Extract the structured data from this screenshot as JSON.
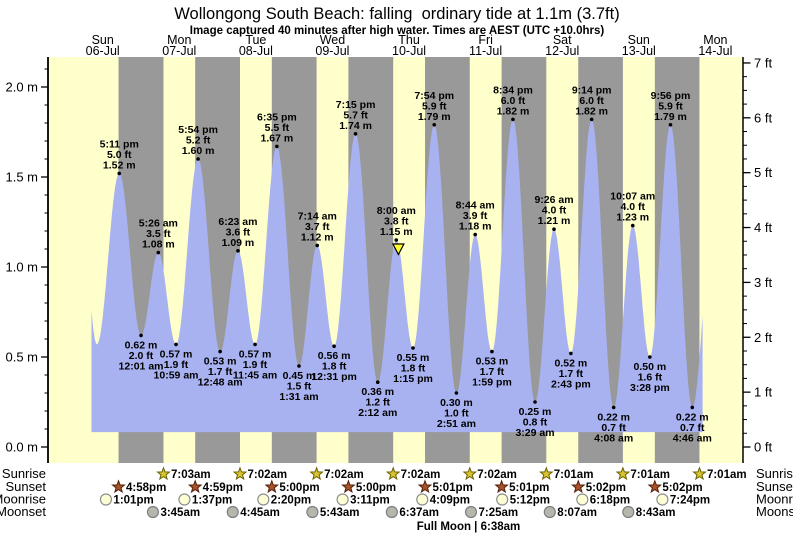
{
  "chart_data": {
    "type": "area",
    "title": "Wollongong South Beach: falling  ordinary tide at 1.1m (3.7ft)",
    "subtitle": "Image captured 40 minutes after high water. Times are AEST (UTC +10.0hrs)",
    "days": [
      {
        "name": "Sun",
        "date": "06-Jul"
      },
      {
        "name": "Mon",
        "date": "07-Jul"
      },
      {
        "name": "Tue",
        "date": "08-Jul"
      },
      {
        "name": "Wed",
        "date": "09-Jul"
      },
      {
        "name": "Thu",
        "date": "10-Jul"
      },
      {
        "name": "Fri",
        "date": "11-Jul"
      },
      {
        "name": "Sat",
        "date": "12-Jul"
      },
      {
        "name": "Sun",
        "date": "13-Jul"
      },
      {
        "name": "Mon",
        "date": "14-Jul"
      }
    ],
    "y_axis_left": {
      "unit": "m",
      "min": 0.0,
      "max": 2.0,
      "major_step": 0.5,
      "minor_step": 0.1,
      "major_tick_labels": [
        "0.0 m",
        "0.5 m",
        "1.0 m",
        "1.5 m",
        "2.0 m"
      ]
    },
    "y_axis_right": {
      "unit": "ft",
      "min": 0,
      "max": 7,
      "major_step": 1,
      "minor_step": 0.25,
      "major_tick_labels": [
        "0 ft",
        "1 ft",
        "2 ft",
        "3 ft",
        "4 ft",
        "5 ft",
        "6 ft",
        "7 ft"
      ]
    },
    "grid": "alternating day/night vertical bands",
    "legend_position": "none",
    "tide_events": [
      {
        "kind": "high",
        "day": 0,
        "time": "5:11 pm",
        "ft": "5.0 ft",
        "m": "1.52 m"
      },
      {
        "kind": "low",
        "day": 1,
        "time": "12:01 am",
        "ft": "2.0 ft",
        "m": "0.62 m"
      },
      {
        "kind": "high",
        "day": 1,
        "time": "5:26 am",
        "ft": "3.5 ft",
        "m": "1.08 m"
      },
      {
        "kind": "low",
        "day": 1,
        "time": "10:59 am",
        "ft": "1.9 ft",
        "m": "0.57 m"
      },
      {
        "kind": "high",
        "day": 1,
        "time": "5:54 pm",
        "ft": "5.2 ft",
        "m": "1.60 m"
      },
      {
        "kind": "low",
        "day": 2,
        "time": "12:48 am",
        "ft": "1.7 ft",
        "m": "0.53 m"
      },
      {
        "kind": "high",
        "day": 2,
        "time": "6:23 am",
        "ft": "3.6 ft",
        "m": "1.09 m"
      },
      {
        "kind": "low",
        "day": 2,
        "time": "11:45 am",
        "ft": "1.9 ft",
        "m": "0.57 m"
      },
      {
        "kind": "high",
        "day": 2,
        "time": "6:35 pm",
        "ft": "5.5 ft",
        "m": "1.67 m"
      },
      {
        "kind": "low",
        "day": 3,
        "time": "1:31 am",
        "ft": "1.5 ft",
        "m": "0.45 m"
      },
      {
        "kind": "high",
        "day": 3,
        "time": "7:14 am",
        "ft": "3.7 ft",
        "m": "1.12 m"
      },
      {
        "kind": "low",
        "day": 3,
        "time": "12:31 pm",
        "ft": "1.8 ft",
        "m": "0.56 m"
      },
      {
        "kind": "high",
        "day": 3,
        "time": "7:15 pm",
        "ft": "5.7 ft",
        "m": "1.74 m"
      },
      {
        "kind": "low",
        "day": 4,
        "time": "2:12 am",
        "ft": "1.2 ft",
        "m": "0.36 m"
      },
      {
        "kind": "high",
        "day": 4,
        "time": "8:00 am",
        "ft": "3.8 ft",
        "m": "1.15 m"
      },
      {
        "kind": "low",
        "day": 4,
        "time": "1:15 pm",
        "ft": "1.8 ft",
        "m": "0.55 m"
      },
      {
        "kind": "high",
        "day": 4,
        "time": "7:54 pm",
        "ft": "5.9 ft",
        "m": "1.79 m"
      },
      {
        "kind": "low",
        "day": 5,
        "time": "2:51 am",
        "ft": "1.0 ft",
        "m": "0.30 m"
      },
      {
        "kind": "high",
        "day": 5,
        "time": "8:44 am",
        "ft": "3.9 ft",
        "m": "1.18 m"
      },
      {
        "kind": "low",
        "day": 5,
        "time": "1:59 pm",
        "ft": "1.7 ft",
        "m": "0.53 m"
      },
      {
        "kind": "high",
        "day": 5,
        "time": "8:34 pm",
        "ft": "6.0 ft",
        "m": "1.82 m"
      },
      {
        "kind": "low",
        "day": 6,
        "time": "3:29 am",
        "ft": "0.8 ft",
        "m": "0.25 m"
      },
      {
        "kind": "high",
        "day": 6,
        "time": "9:26 am",
        "ft": "4.0 ft",
        "m": "1.21 m"
      },
      {
        "kind": "low",
        "day": 6,
        "time": "2:43 pm",
        "ft": "1.7 ft",
        "m": "0.52 m"
      },
      {
        "kind": "high",
        "day": 6,
        "time": "9:14 pm",
        "ft": "6.0 ft",
        "m": "1.82 m"
      },
      {
        "kind": "low",
        "day": 7,
        "time": "4:08 am",
        "ft": "0.7 ft",
        "m": "0.22 m"
      },
      {
        "kind": "high",
        "day": 7,
        "time": "10:07 am",
        "ft": "4.0 ft",
        "m": "1.23 m"
      },
      {
        "kind": "low",
        "day": 7,
        "time": "3:28 pm",
        "ft": "1.6 ft",
        "m": "0.50 m"
      },
      {
        "kind": "high",
        "day": 7,
        "time": "9:56 pm",
        "ft": "5.9 ft",
        "m": "1.79 m"
      },
      {
        "kind": "low",
        "day": 8,
        "time": "4:46 am",
        "ft": "0.7 ft",
        "m": "0.22 m"
      }
    ],
    "current_marker": {
      "day": 4,
      "time": "8:40 am",
      "height_m": 1.1
    },
    "curve_boundaries": {
      "start": {
        "day": 0,
        "time": "8:30 am",
        "height_m": 0.75
      },
      "unlabeled_low": {
        "day": 0,
        "time": "10:10 am",
        "height_m": 0.57
      },
      "end": {
        "day": 8,
        "time": "8:00 am",
        "height_m": 0.73
      }
    },
    "astro_rows": {
      "row_labels": [
        "Sunrise",
        "Sunset",
        "Moonrise",
        "Moonset"
      ],
      "sunrise": [
        {
          "day": 1,
          "time": "7:03am"
        },
        {
          "day": 2,
          "time": "7:02am"
        },
        {
          "day": 3,
          "time": "7:02am"
        },
        {
          "day": 4,
          "time": "7:02am"
        },
        {
          "day": 5,
          "time": "7:02am"
        },
        {
          "day": 6,
          "time": "7:01am"
        },
        {
          "day": 7,
          "time": "7:01am"
        },
        {
          "day": 8,
          "time": "7:01am"
        }
      ],
      "sunset": [
        {
          "day": 0,
          "time": "4:58pm"
        },
        {
          "day": 1,
          "time": "4:59pm"
        },
        {
          "day": 2,
          "time": "5:00pm"
        },
        {
          "day": 3,
          "time": "5:00pm"
        },
        {
          "day": 4,
          "time": "5:01pm"
        },
        {
          "day": 5,
          "time": "5:01pm"
        },
        {
          "day": 6,
          "time": "5:02pm"
        },
        {
          "day": 7,
          "time": "5:02pm"
        }
      ],
      "moonrise": [
        {
          "day": 0,
          "time": "1:01pm"
        },
        {
          "day": 1,
          "time": "1:37pm"
        },
        {
          "day": 2,
          "time": "2:20pm"
        },
        {
          "day": 3,
          "time": "3:11pm"
        },
        {
          "day": 4,
          "time": "4:09pm"
        },
        {
          "day": 5,
          "time": "5:12pm"
        },
        {
          "day": 6,
          "time": "6:18pm"
        },
        {
          "day": 7,
          "time": "7:24pm"
        }
      ],
      "moonset": [
        {
          "day": 1,
          "time": "3:45am"
        },
        {
          "day": 2,
          "time": "4:45am"
        },
        {
          "day": 3,
          "time": "5:43am"
        },
        {
          "day": 4,
          "time": "6:37am"
        },
        {
          "day": 5,
          "time": "7:25am"
        },
        {
          "day": 6,
          "time": "8:07am"
        },
        {
          "day": 7,
          "time": "8:43am"
        }
      ],
      "full_moon_label": "Full Moon | 6:38am",
      "full_moon": {
        "day": 5,
        "time": "6:38am"
      }
    }
  },
  "colors": {
    "background": "#ffffff",
    "daylight_band": "#ffffcc",
    "night_band": "#999999",
    "tide_fill": "#a8b2f0",
    "axis": "#000000",
    "text": "#000000",
    "day_label": "#ee1c1c",
    "sunrise_star_fill": "#d9c531",
    "sunrise_star_stroke": "#6b6100",
    "sunset_star_fill": "#a8532a",
    "sunset_star_stroke": "#53200a",
    "moonrise_fill": "#ffffd6",
    "moonrise_stroke": "#8f8f8f",
    "moonset_fill": "#b6b6ac",
    "moonset_stroke": "#7f7f7f",
    "marker_fill": "#ffff33",
    "marker_stroke": "#000000"
  }
}
